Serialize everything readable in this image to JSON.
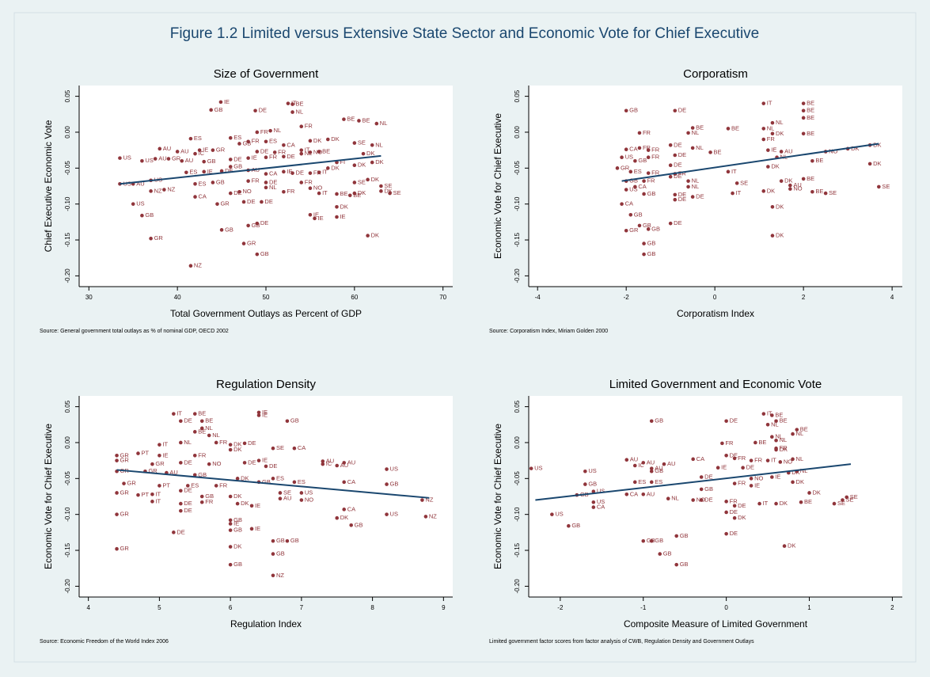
{
  "title": "Figure 1.2 Limited versus Extensive State Sector and Economic Vote for Chief Executive",
  "chart_data": [
    {
      "type": "scatter",
      "title": "Size of Government",
      "xlabel": "Total Government Outlays as Percent of GDP",
      "ylabel": "Chief Executive Economic Vote",
      "note": "Source: General government total outlays as % of nominal GDP, OECD 2002",
      "color": "#90353b",
      "grid": false,
      "xlim": [
        28.9,
        71.1
      ],
      "xticks": [
        30,
        40,
        50,
        60,
        70
      ],
      "ylim": [
        -0.215,
        0.065
      ],
      "yticks": [
        {
          "value": -0.2,
          "label": "-0.20"
        },
        -0.15,
        {
          "value": -0.1,
          "label": "-0.10"
        },
        -0.05,
        {
          "value": 0,
          "label": "0.00"
        },
        0.05
      ],
      "labels": [
        "IE",
        "GB",
        "DE",
        "IT",
        "BE",
        "NL",
        "BE",
        "BE",
        "NL",
        "FR",
        "NL",
        "FR",
        "ES",
        "ES",
        "GB",
        "FR",
        "ES",
        "CA",
        "DK",
        "DK",
        "SE",
        "NL",
        "AU",
        "AU",
        "IC",
        "IE",
        "GR",
        "DE",
        "FR",
        "IT",
        "NO",
        "BE",
        "DK",
        "US",
        "AU",
        "US",
        "GR",
        "AU",
        "GB",
        "DE",
        "IE",
        "FR",
        "DE",
        "NL",
        "FI",
        "DK",
        "DK",
        "GB",
        "ES",
        "IE",
        "DE",
        "AU",
        "CA",
        "IE",
        "DE",
        "FR",
        "IT",
        "DK",
        "US",
        "AU",
        "US",
        "ES",
        "GB",
        "FR",
        "DE",
        "FR",
        "NO",
        "SE",
        "DK",
        "SE",
        "DK",
        "SE",
        "NZ",
        "NZ",
        "CA",
        "DE",
        "NO",
        "NL",
        "FR",
        "IT",
        "BE",
        "BE",
        "DK",
        "US",
        "GR",
        "DE",
        "DE",
        "IE",
        "IE",
        "IE",
        "GB",
        "DK",
        "DE",
        "GB",
        "GB",
        "GR",
        "GR",
        "DK",
        "GB",
        "NZ"
      ],
      "x": [
        44.9,
        43.8,
        48.8,
        52.5,
        53,
        53,
        58.8,
        60.5,
        62.5,
        54,
        50.5,
        49,
        46,
        41.5,
        47,
        48,
        50,
        52,
        55,
        57,
        60,
        62,
        38,
        40,
        42,
        42.5,
        44,
        49,
        51,
        54,
        55,
        56,
        61,
        33.5,
        37.5,
        36,
        39,
        40.5,
        43,
        46,
        48,
        50,
        52,
        54,
        58,
        60,
        62,
        46,
        41,
        43,
        45,
        48,
        50,
        52,
        53,
        55,
        56,
        57,
        33.5,
        35,
        37,
        42,
        44,
        48,
        50,
        54,
        55,
        60,
        61.5,
        63,
        63,
        64,
        38.5,
        37,
        42,
        46,
        47,
        50,
        52,
        56,
        58,
        59.5,
        60,
        35,
        44.5,
        47.5,
        49.5,
        55.5,
        55,
        58,
        36,
        58,
        49,
        48,
        45,
        37,
        47.5,
        61.5,
        49,
        41.5
      ],
      "y": [
        0.042,
        0.031,
        0.03,
        0.04,
        0.039,
        0.028,
        0.018,
        0.016,
        0.012,
        0.008,
        0.002,
        0,
        -0.008,
        -0.009,
        -0.016,
        -0.013,
        -0.013,
        -0.018,
        -0.012,
        -0.01,
        -0.015,
        -0.018,
        -0.023,
        -0.027,
        -0.03,
        -0.025,
        -0.025,
        -0.027,
        -0.028,
        -0.025,
        -0.028,
        -0.027,
        -0.03,
        -0.036,
        -0.037,
        -0.04,
        -0.037,
        -0.04,
        -0.041,
        -0.038,
        -0.036,
        -0.035,
        -0.034,
        -0.03,
        -0.042,
        -0.046,
        -0.042,
        -0.048,
        -0.056,
        -0.055,
        -0.054,
        -0.053,
        -0.058,
        -0.055,
        -0.057,
        -0.057,
        -0.056,
        -0.05,
        -0.072,
        -0.072,
        -0.067,
        -0.072,
        -0.07,
        -0.068,
        -0.07,
        -0.07,
        -0.078,
        -0.07,
        -0.066,
        -0.075,
        -0.082,
        -0.085,
        -0.08,
        -0.082,
        -0.09,
        -0.085,
        -0.083,
        -0.077,
        -0.083,
        -0.085,
        -0.086,
        -0.088,
        -0.085,
        -0.1,
        -0.1,
        -0.097,
        -0.097,
        -0.12,
        -0.115,
        -0.118,
        -0.116,
        -0.104,
        -0.127,
        -0.13,
        -0.136,
        -0.148,
        -0.155,
        -0.144,
        -0.17,
        -0.186
      ],
      "fit": {
        "color": "#1a476f",
        "x": [
          33.5,
          63
        ],
        "y": [
          -0.072,
          -0.033
        ]
      }
    },
    {
      "type": "scatter",
      "title": "Corporatism",
      "xlabel": "Corporatism Index",
      "ylabel": "Economic Vote for Chief Executive",
      "note": "Source: Corporatism Index, Miriam Golden 2000",
      "color": "#90353b",
      "grid": false,
      "xlim": [
        -4.2,
        4.23
      ],
      "xticks": [
        -4,
        -2,
        0,
        2,
        4
      ],
      "ylim": [
        -0.215,
        0.065
      ],
      "yticks": [
        {
          "value": -0.2,
          "label": "-0.20"
        },
        -0.15,
        {
          "value": -0.1,
          "label": "-0.10"
        },
        -0.05,
        {
          "value": 0,
          "label": "0.00"
        },
        0.05
      ],
      "labels": [
        "GB",
        "DE",
        "IT",
        "BE",
        "BE",
        "BE",
        "NL",
        "NL",
        "FR",
        "NL",
        "BE",
        "BE",
        "BE",
        "DK",
        "FR",
        "CA",
        "FR",
        "FR",
        "DE",
        "NL",
        "IE",
        "AU",
        "NO",
        "DK",
        "DK",
        "US",
        "GB",
        "FR",
        "DE",
        "BE",
        "NL",
        "BE",
        "GR",
        "ES",
        "FR",
        "DE",
        "FR",
        "IT",
        "DK",
        "GB",
        "FR",
        "DE",
        "NL",
        "SE",
        "DK",
        "BE",
        "US",
        "CA",
        "GB",
        "DE",
        "DE",
        "NL",
        "DE",
        "IT",
        "DK",
        "AU",
        "NO",
        "BE",
        "SE",
        "SE",
        "CA",
        "GB",
        "DE",
        "GB",
        "GR",
        "GB",
        "DK",
        "DK",
        "GB",
        "GB",
        "DK"
      ],
      "x": [
        -2,
        -0.9,
        1.1,
        2,
        2,
        2,
        1.3,
        1.1,
        -1.7,
        -0.6,
        -0.5,
        0.3,
        2,
        1.3,
        1.1,
        -2,
        -1.7,
        -1.5,
        -1,
        -0.5,
        1.2,
        1.5,
        2.5,
        3,
        3.5,
        -2.1,
        -1.8,
        -1.5,
        -0.9,
        -0.1,
        1.4,
        2.2,
        -2.2,
        -1.9,
        -1.5,
        -1,
        -0.9,
        0.3,
        1.2,
        -2,
        -1.6,
        -1,
        -0.6,
        0.5,
        1.5,
        2,
        -2,
        -1.8,
        -1.6,
        -0.9,
        -0.9,
        -0.6,
        -0.5,
        0.4,
        1.1,
        1.7,
        1.7,
        2.2,
        2.5,
        3.7,
        -2.1,
        -1.9,
        -1,
        -1.7,
        -2,
        -1.5,
        1.3,
        1.3,
        -1.6,
        -1.6,
        3.5
      ],
      "y": [
        0.03,
        0.03,
        0.04,
        0.04,
        0.03,
        0.02,
        0.013,
        0.005,
        -0.001,
        -0.001,
        0.006,
        0.005,
        -0.002,
        -0.002,
        -0.01,
        -0.024,
        -0.022,
        -0.025,
        -0.018,
        -0.022,
        -0.025,
        -0.027,
        -0.027,
        -0.023,
        -0.018,
        -0.035,
        -0.04,
        -0.035,
        -0.032,
        -0.028,
        -0.035,
        -0.04,
        -0.05,
        -0.055,
        -0.057,
        -0.046,
        -0.058,
        -0.055,
        -0.048,
        -0.068,
        -0.068,
        -0.062,
        -0.068,
        -0.071,
        -0.068,
        -0.065,
        -0.08,
        -0.076,
        -0.086,
        -0.087,
        -0.094,
        -0.076,
        -0.09,
        -0.085,
        -0.082,
        -0.074,
        -0.079,
        -0.083,
        -0.085,
        -0.076,
        -0.1,
        -0.115,
        -0.127,
        -0.13,
        -0.137,
        -0.135,
        -0.104,
        -0.144,
        -0.155,
        -0.17,
        -0.044
      ],
      "fit": {
        "color": "#1a476f",
        "x": [
          -2.1,
          3.7
        ],
        "y": [
          -0.068,
          -0.016
        ]
      }
    },
    {
      "type": "scatter",
      "title": "Regulation Density",
      "xlabel": "Regulation Index",
      "ylabel": "Economic Vote for Chief Executive",
      "note": "Source: Economic Freedom of the World Index 2006",
      "color": "#90353b",
      "grid": false,
      "xlim": [
        3.87,
        9.13
      ],
      "xticks": [
        4,
        5,
        6,
        7,
        8,
        9
      ],
      "ylim": [
        -0.215,
        0.065
      ],
      "yticks": [
        {
          "value": -0.2,
          "label": "-0.20"
        },
        -0.15,
        {
          "value": -0.1,
          "label": "-0.10"
        },
        -0.05,
        {
          "value": 0,
          "label": "0.00"
        },
        0.05
      ],
      "labels": [
        "IT",
        "BE",
        "IE",
        "IE",
        "GB",
        "DE",
        "BE",
        "NL",
        "BE",
        "NL",
        "IT",
        "NL",
        "FR",
        "DK",
        "DE",
        "CA",
        "SE",
        "GR",
        "PT",
        "IE",
        "FR",
        "DK",
        "IE",
        "AU",
        "AU",
        "IC",
        "AU",
        "GR",
        "GR",
        "DE",
        "NO",
        "DE",
        "DE",
        "US",
        "GR",
        "GR",
        "AU",
        "GB",
        "DK",
        "ES",
        "CA",
        "GB",
        "GR",
        "PT",
        "ES",
        "FR",
        "GB",
        "ES",
        "GR",
        "PT",
        "IT",
        "DE",
        "GB",
        "DK",
        "SE",
        "US",
        "AU",
        "NO",
        "IT",
        "DE",
        "FR",
        "DK",
        "IE",
        "NZ",
        "GR",
        "DE",
        "CA",
        "DK",
        "GB",
        "US",
        "NZ",
        "GB",
        "IE",
        "GB",
        "IE",
        "DE",
        "GB",
        "GB",
        "DK",
        "GR",
        "GB",
        "GB",
        "NZ"
      ],
      "x": [
        5.2,
        5.5,
        6.4,
        6.4,
        6.8,
        5.3,
        5.6,
        5.6,
        5.5,
        5.7,
        5,
        5.3,
        5.8,
        6,
        6.2,
        6.9,
        6.6,
        4.4,
        4.7,
        5,
        5.5,
        6,
        6.4,
        7.3,
        7.6,
        7.3,
        7.5,
        4.4,
        4.9,
        5.3,
        5.7,
        6.2,
        6.5,
        8.2,
        4.4,
        4.8,
        5.1,
        5.5,
        6.1,
        6.6,
        7.6,
        8.2,
        4.5,
        5,
        5.4,
        5.8,
        6.4,
        6.9,
        4.4,
        4.7,
        4.9,
        5.3,
        5.6,
        6,
        6.7,
        7,
        6.7,
        7,
        4.9,
        5.3,
        5.6,
        6.1,
        6.3,
        8.7,
        4.4,
        5.3,
        7.6,
        7.5,
        7.7,
        8.2,
        8.75,
        6,
        6,
        6,
        6.3,
        5.2,
        6.6,
        6.8,
        6,
        4.4,
        6.6,
        6,
        6.6
      ],
      "y": [
        0.04,
        0.04,
        0.042,
        0.038,
        0.03,
        0.03,
        0.03,
        0.02,
        0.015,
        0.01,
        -0.003,
        0,
        0,
        -0.003,
        -0.001,
        -0.008,
        -0.008,
        -0.018,
        -0.015,
        -0.018,
        -0.018,
        -0.01,
        -0.025,
        -0.026,
        -0.028,
        -0.03,
        -0.032,
        -0.025,
        -0.03,
        -0.028,
        -0.03,
        -0.028,
        -0.033,
        -0.037,
        -0.04,
        -0.04,
        -0.042,
        -0.045,
        -0.05,
        -0.05,
        -0.055,
        -0.058,
        -0.057,
        -0.06,
        -0.06,
        -0.06,
        -0.055,
        -0.055,
        -0.07,
        -0.073,
        -0.072,
        -0.067,
        -0.075,
        -0.075,
        -0.07,
        -0.07,
        -0.078,
        -0.08,
        -0.082,
        -0.085,
        -0.083,
        -0.085,
        -0.088,
        -0.08,
        -0.1,
        -0.095,
        -0.093,
        -0.105,
        -0.115,
        -0.1,
        -0.103,
        -0.108,
        -0.113,
        -0.122,
        -0.12,
        -0.125,
        -0.137,
        -0.137,
        -0.145,
        -0.148,
        -0.155,
        -0.17,
        -0.185
      ],
      "fit": {
        "color": "#1a476f",
        "x": [
          4.4,
          8.8
        ],
        "y": [
          -0.038,
          -0.077
        ]
      }
    },
    {
      "type": "scatter",
      "title": "Limited Government and Economic Vote",
      "xlabel": "Composite Measure of Limited Government",
      "ylabel": "Economic Vote for Chief Executive",
      "note": "Limited government factor scores from factor analysis of CWB, Regulation Density and Government Outlays",
      "color": "#90353b",
      "grid": false,
      "xlim": [
        -2.38,
        2.12
      ],
      "xticks": [
        -2,
        -1,
        0,
        1,
        2
      ],
      "ylim": [
        -0.215,
        0.065
      ],
      "yticks": [
        {
          "value": -0.2,
          "label": "-0.20"
        },
        -0.15,
        {
          "value": -0.1,
          "label": "-0.10"
        },
        -0.05,
        {
          "value": 0,
          "label": "0.00"
        },
        0.05
      ],
      "labels": [
        "GB",
        "DE",
        "IT",
        "BE",
        "NL",
        "BE",
        "BE",
        "NL",
        "FR",
        "BE",
        "NL",
        "NL",
        "FR",
        "DK",
        "CA",
        "DE",
        "FR",
        "FR",
        "IT",
        "NO",
        "NL",
        "AU",
        "AU",
        "AU",
        "IC",
        "AU",
        "US",
        "US",
        "GB",
        "IE",
        "DE",
        "DK",
        "NL",
        "GB",
        "ES",
        "DE",
        "FR",
        "ES",
        "IE",
        "DK",
        "US",
        "GB",
        "CA",
        "AU",
        "GB",
        "NL",
        "NO",
        "DE",
        "FR",
        "IT",
        "DK",
        "BE",
        "SE",
        "SE",
        "DK",
        "US",
        "CA",
        "US",
        "DE",
        "DK",
        "GB",
        "DE",
        "GB",
        "GB",
        "GB",
        "DK",
        "GB",
        "GB",
        "SE",
        "NO",
        "DE",
        "IE"
      ],
      "x": [
        -0.9,
        0,
        0.45,
        0.55,
        0.5,
        0.6,
        0.85,
        0.8,
        -0.05,
        0.35,
        0.55,
        0.6,
        0.6,
        0.6,
        -0.4,
        0,
        0.1,
        0.3,
        0.5,
        0.65,
        0.8,
        -1.2,
        -1,
        -0.75,
        -1.1,
        -0.9,
        -2.35,
        -1.7,
        -0.9,
        -0.1,
        0.2,
        0.75,
        0.85,
        -1.7,
        -1.1,
        -0.3,
        0.1,
        -0.9,
        0.55,
        0.8,
        -1.6,
        -1.8,
        -1.2,
        -1,
        -0.3,
        -0.7,
        -0.4,
        -0.3,
        0,
        0.4,
        0.6,
        0.9,
        1.4,
        1.3,
        1,
        -1.6,
        -1.6,
        -2.1,
        0,
        0.1,
        -1.9,
        0,
        -0.6,
        -0.9,
        -1,
        0.7,
        -0.8,
        -0.6,
        1.45,
        0.3,
        0.1,
        0.3
      ],
      "y": [
        0.03,
        0.03,
        0.04,
        0.038,
        0.025,
        0.03,
        0.018,
        0.012,
        -0.001,
        0,
        0.008,
        0.003,
        -0.008,
        -0.01,
        -0.023,
        -0.018,
        -0.022,
        -0.025,
        -0.025,
        -0.027,
        -0.023,
        -0.024,
        -0.028,
        -0.03,
        -0.032,
        -0.036,
        -0.036,
        -0.04,
        -0.04,
        -0.035,
        -0.035,
        -0.042,
        -0.04,
        -0.058,
        -0.055,
        -0.048,
        -0.057,
        -0.055,
        -0.048,
        -0.055,
        -0.068,
        -0.073,
        -0.072,
        -0.072,
        -0.065,
        -0.078,
        -0.08,
        -0.08,
        -0.082,
        -0.085,
        -0.085,
        -0.083,
        -0.08,
        -0.085,
        -0.07,
        -0.083,
        -0.09,
        -0.1,
        -0.097,
        -0.105,
        -0.116,
        -0.127,
        -0.13,
        -0.137,
        -0.137,
        -0.144,
        -0.155,
        -0.17,
        -0.076,
        -0.05,
        -0.088,
        -0.06
      ],
      "fit": {
        "color": "#1a476f",
        "x": [
          -2.3,
          1.5
        ],
        "y": [
          -0.08,
          -0.03
        ]
      }
    }
  ]
}
